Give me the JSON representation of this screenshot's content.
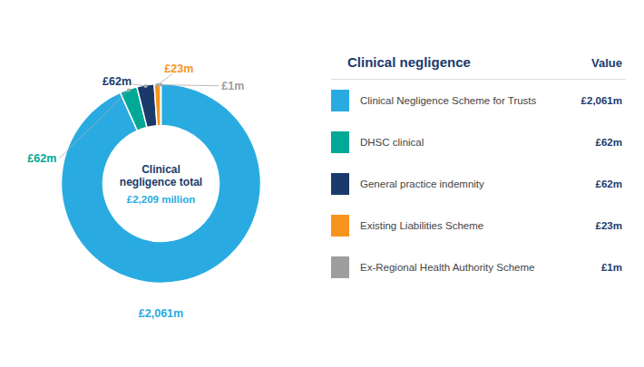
{
  "chart_data": {
    "type": "donut",
    "categories": [
      "Clinical Negligence Scheme for Trusts",
      "DHSC clinical",
      "General practice indemnity",
      "Existing Liabilities Scheme",
      "Ex-Regional Health Authority Scheme"
    ],
    "values": [
      2061,
      62,
      62,
      23,
      1
    ],
    "value_labels": [
      "£2,061m",
      "£62m",
      "£62m",
      "£23m",
      "£1m"
    ],
    "colors": [
      "#29ABE2",
      "#00A896",
      "#1B3A6B",
      "#F7941D",
      "#9E9E9E"
    ],
    "data_labels": true,
    "legend": "right",
    "legend_title": "Clinical negligence",
    "legend_value_title": "Value",
    "annotations": [
      "Clinical\nnegligence total",
      "£2,209 million"
    ]
  }
}
